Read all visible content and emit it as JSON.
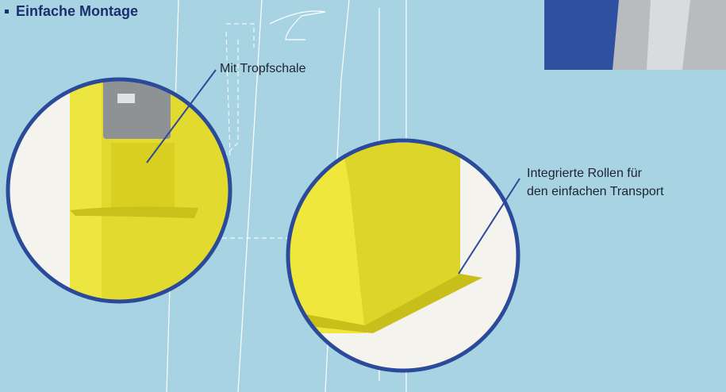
{
  "heading": "Einfache Montage",
  "callouts": [
    {
      "label_lines": [
        "Mit Tropfschale"
      ]
    },
    {
      "label_lines": [
        "Integrierte Rollen für",
        "den einfachen Transport"
      ]
    }
  ]
}
